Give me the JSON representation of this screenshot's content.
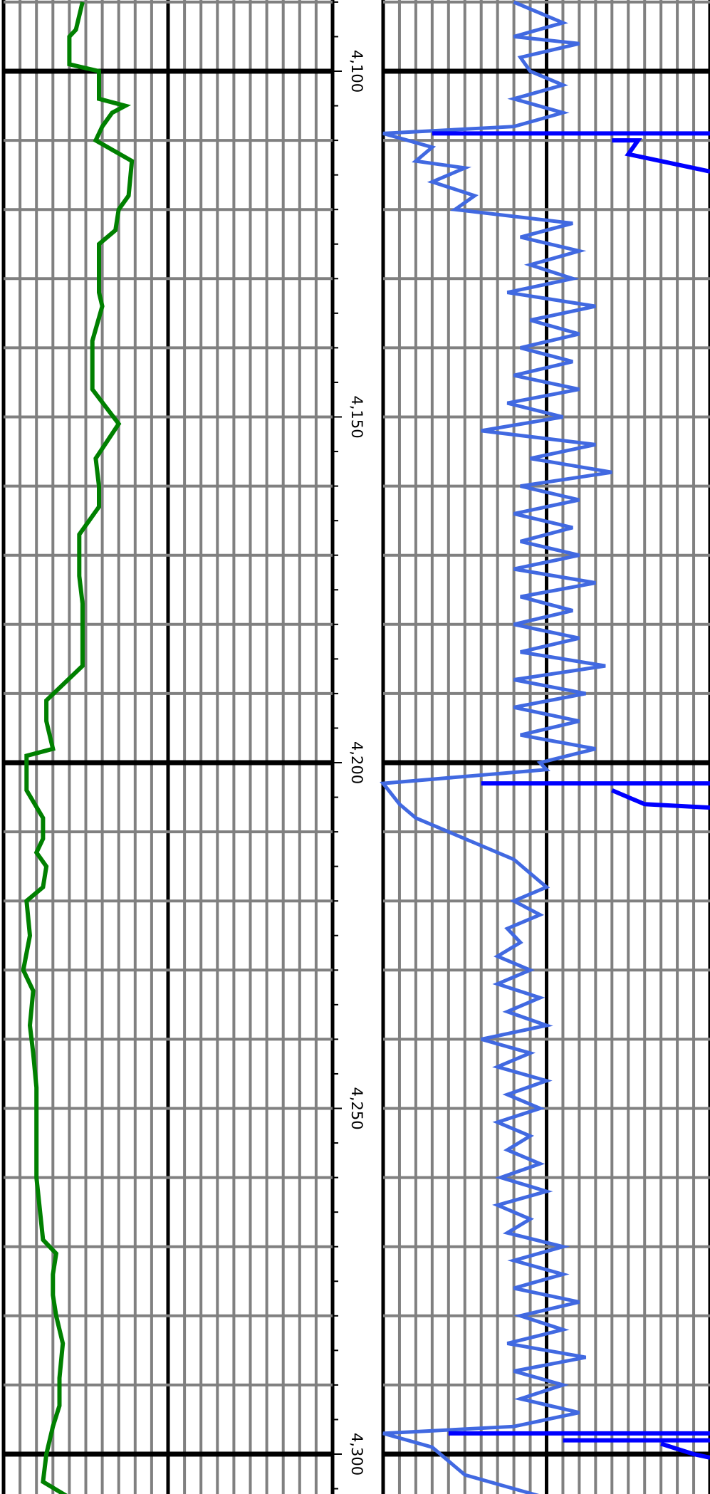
{
  "chart_data": {
    "type": "line",
    "y_axis": {
      "quantity": "depth",
      "range": [
        4090,
        4312
      ],
      "inverted": true,
      "major_ticks": [
        4100,
        4150,
        4200,
        4250,
        4300
      ],
      "tick_labels": [
        "4,100",
        "4,150",
        "4,200",
        "4,250",
        "4,300"
      ],
      "minor_tick_step": 5,
      "bold_grid_step": 100
    },
    "tracks": [
      {
        "id": "track-1",
        "series": [
          {
            "color": "#008000",
            "points": [
              [
                4090,
                0.24
              ],
              [
                4094,
                0.22
              ],
              [
                4095,
                0.2
              ],
              [
                4099,
                0.2
              ],
              [
                4100,
                0.29
              ],
              [
                4104,
                0.29
              ],
              [
                4105,
                0.37
              ],
              [
                4106,
                0.33
              ],
              [
                4108,
                0.3
              ],
              [
                4110,
                0.28
              ],
              [
                4113,
                0.39
              ],
              [
                4118,
                0.38
              ],
              [
                4120,
                0.35
              ],
              [
                4123,
                0.34
              ],
              [
                4125,
                0.29
              ],
              [
                4132,
                0.29
              ],
              [
                4134,
                0.3
              ],
              [
                4139,
                0.27
              ],
              [
                4146,
                0.27
              ],
              [
                4151,
                0.35
              ],
              [
                4156,
                0.28
              ],
              [
                4160,
                0.29
              ],
              [
                4163,
                0.29
              ],
              [
                4167,
                0.23
              ],
              [
                4173,
                0.23
              ],
              [
                4177,
                0.24
              ],
              [
                4186,
                0.24
              ],
              [
                4191,
                0.13
              ],
              [
                4194,
                0.13
              ],
              [
                4198,
                0.15
              ],
              [
                4199,
                0.07
              ],
              [
                4204,
                0.07
              ],
              [
                4208,
                0.12
              ],
              [
                4211,
                0.12
              ],
              [
                4213,
                0.1
              ],
              [
                4215,
                0.13
              ],
              [
                4218,
                0.12
              ],
              [
                4220,
                0.07
              ],
              [
                4225,
                0.08
              ],
              [
                4230,
                0.06
              ],
              [
                4233,
                0.09
              ],
              [
                4238,
                0.08
              ],
              [
                4242,
                0.09
              ],
              [
                4247,
                0.1
              ],
              [
                4251,
                0.1
              ],
              [
                4260,
                0.1
              ],
              [
                4269,
                0.12
              ],
              [
                4271,
                0.16
              ],
              [
                4274,
                0.15
              ],
              [
                4277,
                0.15
              ],
              [
                4280,
                0.16
              ],
              [
                4284,
                0.18
              ],
              [
                4289,
                0.17
              ],
              [
                4293,
                0.17
              ],
              [
                4296,
                0.15
              ],
              [
                4300,
                0.13
              ],
              [
                4304,
                0.12
              ],
              [
                4306,
                0.19
              ],
              [
                4308,
                0.12
              ],
              [
                4312,
                0.13
              ]
            ]
          }
        ]
      },
      {
        "id": "track-2",
        "series": [
          {
            "color": "#4169E1",
            "points": [
              [
                4090,
                0.4
              ],
              [
                4093,
                0.55
              ],
              [
                4095,
                0.4
              ],
              [
                4096,
                0.6
              ],
              [
                4098,
                0.42
              ],
              [
                4100,
                0.45
              ],
              [
                4102,
                0.55
              ],
              [
                4104,
                0.4
              ],
              [
                4106,
                0.55
              ],
              [
                4108,
                0.4
              ],
              [
                4109,
                0.0
              ],
              [
                4111,
                0.15
              ],
              [
                4113,
                0.1
              ],
              [
                4114,
                0.25
              ],
              [
                4116,
                0.15
              ],
              [
                4118,
                0.28
              ],
              [
                4120,
                0.22
              ],
              [
                4122,
                0.58
              ],
              [
                4124,
                0.42
              ],
              [
                4126,
                0.6
              ],
              [
                4128,
                0.45
              ],
              [
                4130,
                0.58
              ],
              [
                4132,
                0.38
              ],
              [
                4134,
                0.65
              ],
              [
                4136,
                0.45
              ],
              [
                4138,
                0.6
              ],
              [
                4140,
                0.42
              ],
              [
                4142,
                0.58
              ],
              [
                4144,
                0.4
              ],
              [
                4146,
                0.6
              ],
              [
                4148,
                0.38
              ],
              [
                4150,
                0.55
              ],
              [
                4152,
                0.3
              ],
              [
                4154,
                0.65
              ],
              [
                4156,
                0.45
              ],
              [
                4158,
                0.7
              ],
              [
                4160,
                0.42
              ],
              [
                4162,
                0.6
              ],
              [
                4164,
                0.4
              ],
              [
                4166,
                0.58
              ],
              [
                4168,
                0.42
              ],
              [
                4170,
                0.6
              ],
              [
                4172,
                0.4
              ],
              [
                4174,
                0.65
              ],
              [
                4176,
                0.42
              ],
              [
                4178,
                0.58
              ],
              [
                4180,
                0.4
              ],
              [
                4182,
                0.6
              ],
              [
                4184,
                0.42
              ],
              [
                4186,
                0.68
              ],
              [
                4188,
                0.4
              ],
              [
                4190,
                0.62
              ],
              [
                4192,
                0.4
              ],
              [
                4194,
                0.6
              ],
              [
                4196,
                0.42
              ],
              [
                4198,
                0.65
              ],
              [
                4200,
                0.48
              ],
              [
                4201,
                0.5
              ],
              [
                4203,
                0.0
              ],
              [
                4206,
                0.05
              ],
              [
                4208,
                0.1
              ],
              [
                4210,
                0.2
              ],
              [
                4212,
                0.3
              ],
              [
                4214,
                0.4
              ],
              [
                4216,
                0.45
              ],
              [
                4218,
                0.5
              ],
              [
                4220,
                0.4
              ],
              [
                4222,
                0.48
              ],
              [
                4224,
                0.38
              ],
              [
                4226,
                0.42
              ],
              [
                4228,
                0.35
              ],
              [
                4230,
                0.45
              ],
              [
                4232,
                0.35
              ],
              [
                4234,
                0.48
              ],
              [
                4236,
                0.38
              ],
              [
                4238,
                0.5
              ],
              [
                4240,
                0.3
              ],
              [
                4242,
                0.45
              ],
              [
                4244,
                0.35
              ],
              [
                4246,
                0.5
              ],
              [
                4248,
                0.38
              ],
              [
                4250,
                0.48
              ],
              [
                4252,
                0.35
              ],
              [
                4254,
                0.45
              ],
              [
                4256,
                0.38
              ],
              [
                4258,
                0.48
              ],
              [
                4260,
                0.36
              ],
              [
                4262,
                0.5
              ],
              [
                4264,
                0.35
              ],
              [
                4266,
                0.45
              ],
              [
                4268,
                0.38
              ],
              [
                4270,
                0.55
              ],
              [
                4272,
                0.4
              ],
              [
                4274,
                0.55
              ],
              [
                4276,
                0.4
              ],
              [
                4278,
                0.6
              ],
              [
                4280,
                0.42
              ],
              [
                4282,
                0.55
              ],
              [
                4284,
                0.38
              ],
              [
                4286,
                0.62
              ],
              [
                4288,
                0.4
              ],
              [
                4290,
                0.55
              ],
              [
                4292,
                0.42
              ],
              [
                4294,
                0.6
              ],
              [
                4296,
                0.4
              ],
              [
                4297,
                0.0
              ],
              [
                4299,
                0.15
              ],
              [
                4301,
                0.2
              ],
              [
                4303,
                0.25
              ],
              [
                4305,
                0.4
              ],
              [
                4307,
                0.55
              ],
              [
                4309,
                0.42
              ],
              [
                4311,
                0.55
              ],
              [
                4312,
                0.45
              ]
            ]
          },
          {
            "color": "#0000FF",
            "segments": [
              [
                [
                  4109,
                  0.15
                ],
                [
                  4109,
                  1.0
                ]
              ],
              [
                [
                  4110,
                  0.7
                ],
                [
                  4110,
                  0.78
                ],
                [
                  4112,
                  0.75
                ],
                [
                  4114,
                  0.95
                ],
                [
                  4114.5,
                  1.0
                ]
              ],
              [
                [
                  4203,
                  0.3
                ],
                [
                  4203,
                  1.0
                ]
              ],
              [
                [
                  4204,
                  0.7
                ],
                [
                  4206,
                  0.8
                ],
                [
                  4206.5,
                  1.0
                ]
              ],
              [
                [
                  4297,
                  0.2
                ],
                [
                  4297,
                  1.0
                ]
              ],
              [
                [
                  4298,
                  0.55
                ],
                [
                  4298,
                  1.0
                ]
              ],
              [
                [
                  4298.5,
                  0.85
                ],
                [
                  4300,
                  0.95
                ],
                [
                  4300.5,
                  1.0
                ]
              ]
            ]
          }
        ]
      }
    ]
  }
}
